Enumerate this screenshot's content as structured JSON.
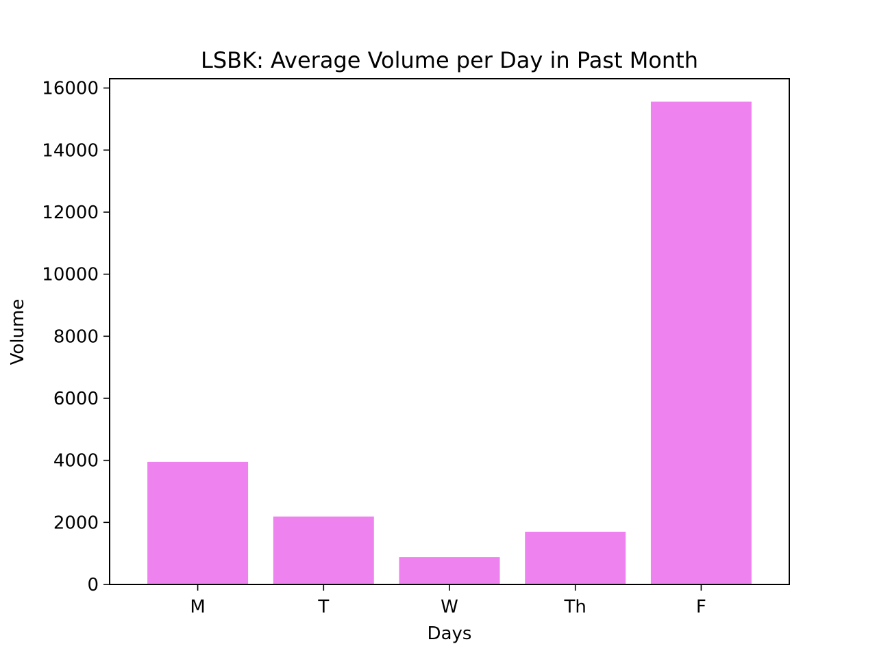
{
  "chart_data": {
    "type": "bar",
    "title": "LSBK: Average Volume per Day in Past Month",
    "xlabel": "Days",
    "ylabel": "Volume",
    "categories": [
      "M",
      "T",
      "W",
      "Th",
      "F"
    ],
    "values": [
      3950,
      2190,
      880,
      1700,
      15560
    ],
    "ylim": [
      0,
      16300
    ],
    "yticks": [
      0,
      2000,
      4000,
      6000,
      8000,
      10000,
      12000,
      14000,
      16000
    ],
    "bar_color": "#ee82ee",
    "grid": false,
    "legend": "none"
  }
}
